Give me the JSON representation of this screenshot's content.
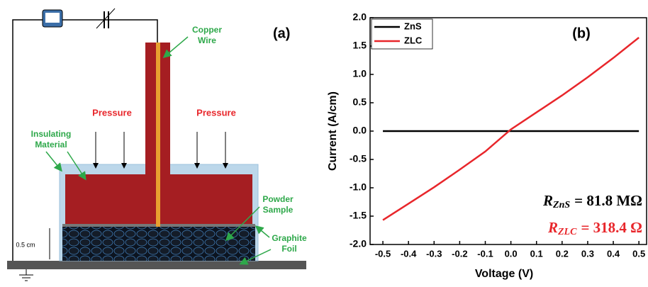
{
  "diagram": {
    "panel_label": "(a)",
    "copper_wire": [
      "Copper",
      "Wire"
    ],
    "pressure_left": "Pressure",
    "pressure_right": "Pressure",
    "insulating": [
      "Insulating",
      "Material"
    ],
    "powder": [
      "Powder",
      "Sample"
    ],
    "graphite": [
      "Graphite",
      "Foil"
    ],
    "thickness": "0.5 cm"
  },
  "chart_data": {
    "type": "line",
    "panel_label": "(b)",
    "xlabel": "Voltage (V)",
    "ylabel": "Current (A/cm)",
    "x": [
      -0.5,
      -0.4,
      -0.3,
      -0.2,
      -0.1,
      0,
      0.1,
      0.2,
      0.3,
      0.4,
      0.5
    ],
    "series": [
      {
        "name": "ZnS",
        "color": "#000000",
        "values": [
          0,
          0,
          0,
          0,
          0,
          0,
          0,
          0,
          0,
          0,
          0
        ]
      },
      {
        "name": "ZLC",
        "color": "#e8262b",
        "values": [
          -1.57,
          -1.28,
          -0.99,
          -0.68,
          -0.36,
          0.03,
          0.33,
          0.63,
          0.95,
          1.29,
          1.65
        ]
      }
    ],
    "xlim": [
      -0.55,
      0.53
    ],
    "ylim": [
      -2.0,
      2.0
    ],
    "xticks": [
      -0.5,
      -0.4,
      -0.3,
      -0.2,
      -0.1,
      {
        "value": 0,
        "label": "0.0"
      },
      0.1,
      0.2,
      0.3,
      0.4,
      0.5
    ],
    "yticks": [
      {
        "value": -2,
        "label": "-2.0"
      },
      -1.5,
      {
        "value": -1,
        "label": "-1.0"
      },
      -0.5,
      {
        "value": 0,
        "label": "0.0"
      },
      0.5,
      {
        "value": 1,
        "label": "1.0"
      },
      1.5,
      {
        "value": 2,
        "label": "2.0"
      }
    ],
    "legend": "upper left",
    "annotations": [
      {
        "symbol": "R",
        "subscript": "ZnS",
        "text": "= 81.8 MΩ",
        "color": "#000000"
      },
      {
        "symbol": "R",
        "subscript": "ZLC",
        "text": "= 318.4 Ω",
        "color": "#e8262b"
      }
    ]
  }
}
